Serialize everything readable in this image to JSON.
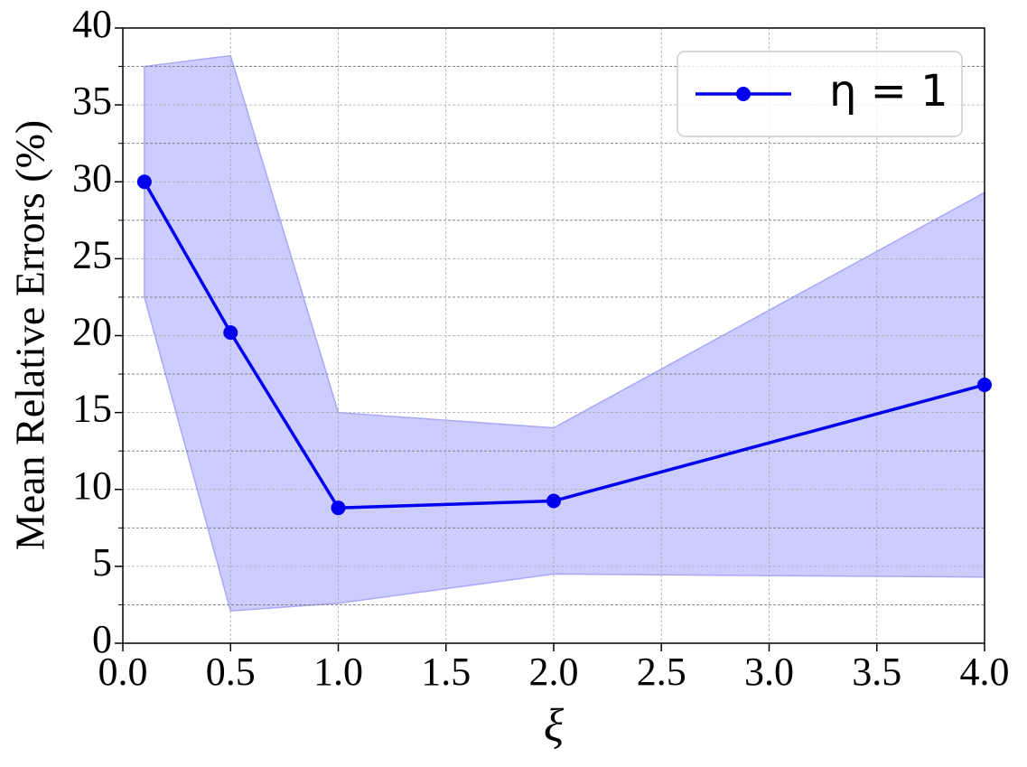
{
  "chart_data": {
    "type": "line",
    "xlabel": "ξ",
    "ylabel": "Mean Relative Errors (%)",
    "x": [
      0.1,
      0.5,
      1.0,
      2.0,
      4.0
    ],
    "series": [
      {
        "name": "η = 1",
        "color": "#0000ee",
        "values": [
          30.0,
          20.2,
          8.8,
          9.25,
          16.8
        ]
      }
    ],
    "band": {
      "color": "#ccccff",
      "edge_color": "#a8a8f8",
      "upper": [
        37.5,
        38.2,
        15.0,
        14.0,
        29.3
      ],
      "lower": [
        22.5,
        2.1,
        2.6,
        4.5,
        4.3
      ]
    },
    "xlim": [
      0,
      4
    ],
    "ylim": [
      0,
      40
    ],
    "xticks": [
      {
        "value": 0,
        "label": "0.0"
      },
      {
        "value": 0.5,
        "label": "0.5"
      },
      {
        "value": 1,
        "label": "1.0"
      },
      {
        "value": 1.5,
        "label": "1.5"
      },
      {
        "value": 2,
        "label": "2.0"
      },
      {
        "value": 2.5,
        "label": "2.5"
      },
      {
        "value": 3,
        "label": "3.0"
      },
      {
        "value": 3.5,
        "label": "3.5"
      },
      {
        "value": 4,
        "label": "4.0"
      }
    ],
    "yticks": [
      0,
      5,
      10,
      15,
      20,
      25,
      30,
      35,
      40
    ],
    "y_minor_ticks": [
      2.5,
      7.5,
      12.5,
      17.5,
      22.5,
      27.5,
      32.5,
      37.5
    ],
    "grid": true,
    "legend": "upper right"
  }
}
